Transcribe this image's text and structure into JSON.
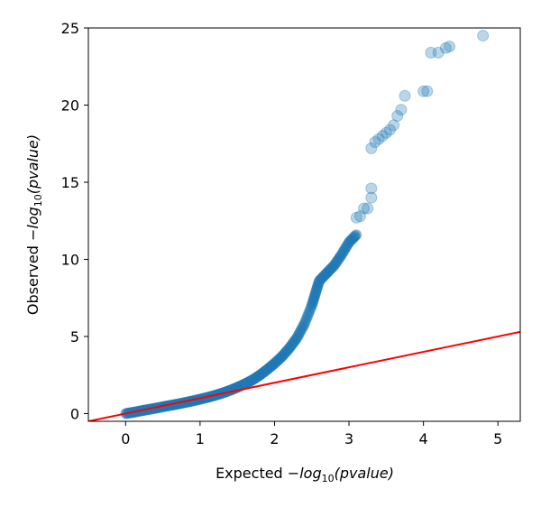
{
  "chart_data": {
    "type": "scatter",
    "xlabel": {
      "prefix": "Expected ",
      "math": "−log",
      "subscript": "10",
      "arg": "(pvalue)"
    },
    "ylabel": {
      "prefix": "Observed ",
      "math": "−log",
      "subscript": "10",
      "arg": "(pvalue)"
    },
    "xlim": [
      -0.5,
      5.3
    ],
    "ylim": [
      -0.5,
      25
    ],
    "xticks": [
      0,
      1,
      2,
      3,
      4,
      5
    ],
    "yticks": [
      0,
      5,
      10,
      15,
      20,
      25
    ],
    "grid": false,
    "legend": "none",
    "colors": {
      "points": "#1f77b4",
      "reference_line": "#ff0000",
      "axes": "#000000"
    },
    "reference_line": {
      "slope": 1.0,
      "intercept": 0.0,
      "x_range": [
        -0.5,
        5.3
      ]
    },
    "curve_points": [
      [
        0.0,
        0.0
      ],
      [
        0.1,
        0.08
      ],
      [
        0.2,
        0.17
      ],
      [
        0.3,
        0.26
      ],
      [
        0.4,
        0.35
      ],
      [
        0.5,
        0.44
      ],
      [
        0.6,
        0.53
      ],
      [
        0.7,
        0.62
      ],
      [
        0.8,
        0.72
      ],
      [
        0.9,
        0.82
      ],
      [
        1.0,
        0.93
      ],
      [
        1.1,
        1.05
      ],
      [
        1.2,
        1.18
      ],
      [
        1.3,
        1.33
      ],
      [
        1.4,
        1.5
      ],
      [
        1.5,
        1.7
      ],
      [
        1.6,
        1.92
      ],
      [
        1.7,
        2.17
      ],
      [
        1.8,
        2.48
      ],
      [
        1.9,
        2.85
      ],
      [
        2.0,
        3.25
      ],
      [
        2.1,
        3.7
      ],
      [
        2.2,
        4.25
      ],
      [
        2.3,
        4.9
      ],
      [
        2.4,
        5.8
      ],
      [
        2.5,
        7.0
      ],
      [
        2.55,
        7.8
      ],
      [
        2.6,
        8.6
      ],
      [
        2.7,
        9.1
      ],
      [
        2.8,
        9.6
      ],
      [
        2.9,
        10.3
      ],
      [
        3.0,
        11.1
      ],
      [
        3.1,
        11.6
      ]
    ],
    "outlier_points": [
      [
        3.1,
        12.7
      ],
      [
        3.15,
        12.8
      ],
      [
        3.2,
        13.3
      ],
      [
        3.25,
        13.3
      ],
      [
        3.3,
        14.0
      ],
      [
        3.3,
        14.6
      ],
      [
        3.3,
        17.2
      ],
      [
        3.35,
        17.6
      ],
      [
        3.4,
        17.8
      ],
      [
        3.45,
        18.0
      ],
      [
        3.5,
        18.2
      ],
      [
        3.55,
        18.4
      ],
      [
        3.6,
        18.7
      ],
      [
        3.65,
        19.3
      ],
      [
        3.7,
        19.7
      ],
      [
        3.75,
        20.6
      ],
      [
        4.0,
        20.9
      ],
      [
        4.05,
        20.9
      ],
      [
        4.1,
        23.4
      ],
      [
        4.2,
        23.4
      ],
      [
        4.3,
        23.7
      ],
      [
        4.35,
        23.8
      ],
      [
        4.8,
        24.5
      ]
    ]
  }
}
